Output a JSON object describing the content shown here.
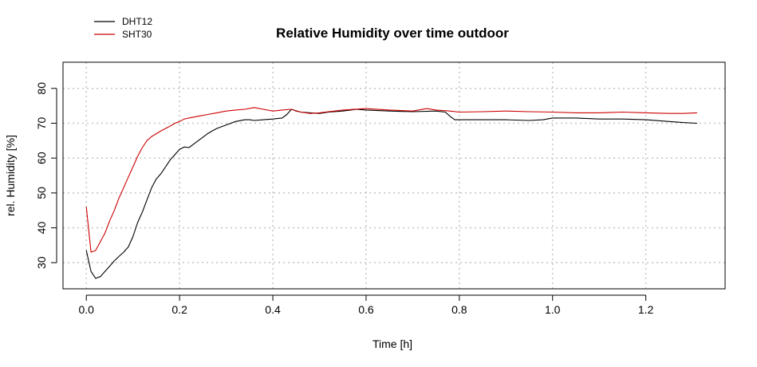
{
  "chart_data": {
    "type": "line",
    "title": "Relative Humidity over time outdoor",
    "xlabel": "Time [h]",
    "ylabel": "rel. Humidity [%]",
    "xlim": [
      -0.05,
      1.37
    ],
    "ylim": [
      22.5,
      87.5
    ],
    "xticks": [
      0.0,
      0.2,
      0.4,
      0.6,
      0.8,
      1.0,
      1.2
    ],
    "xtick_labels": [
      "0.0",
      "0.2",
      "0.4",
      "0.6",
      "0.8",
      "1.0",
      "1.2"
    ],
    "yticks": [
      30,
      40,
      50,
      60,
      70,
      80
    ],
    "ytick_labels": [
      "30",
      "40",
      "50",
      "60",
      "70",
      "80"
    ],
    "grid": true,
    "legend_position": "top-left",
    "series": [
      {
        "name": "DHT12",
        "color": "#000000",
        "x": [
          0.0,
          0.01,
          0.02,
          0.03,
          0.04,
          0.05,
          0.06,
          0.07,
          0.08,
          0.09,
          0.1,
          0.11,
          0.12,
          0.13,
          0.14,
          0.15,
          0.16,
          0.17,
          0.18,
          0.19,
          0.2,
          0.21,
          0.22,
          0.23,
          0.24,
          0.25,
          0.26,
          0.27,
          0.28,
          0.3,
          0.32,
          0.34,
          0.35,
          0.36,
          0.38,
          0.4,
          0.42,
          0.43,
          0.44,
          0.45,
          0.46,
          0.48,
          0.5,
          0.52,
          0.55,
          0.58,
          0.6,
          0.65,
          0.7,
          0.75,
          0.77,
          0.78,
          0.79,
          0.8,
          0.85,
          0.9,
          0.95,
          0.98,
          1.0,
          1.05,
          1.1,
          1.15,
          1.2,
          1.25,
          1.28,
          1.31
        ],
        "values": [
          33.5,
          27.5,
          25.5,
          26.0,
          27.5,
          29.0,
          30.5,
          31.8,
          33.0,
          34.5,
          37.5,
          41.5,
          44.5,
          48.0,
          51.5,
          54.0,
          55.5,
          57.5,
          59.5,
          61.0,
          62.5,
          63.2,
          63.0,
          64.0,
          65.0,
          66.0,
          67.0,
          67.8,
          68.5,
          69.5,
          70.5,
          71.0,
          71.0,
          70.8,
          71.0,
          71.2,
          71.5,
          72.5,
          74.0,
          73.5,
          73.2,
          73.0,
          72.8,
          73.2,
          73.5,
          74.0,
          73.8,
          73.5,
          73.3,
          73.5,
          73.2,
          72.0,
          71.0,
          71.0,
          71.0,
          71.0,
          70.8,
          71.0,
          71.5,
          71.5,
          71.2,
          71.2,
          71.0,
          70.5,
          70.2,
          70.0
        ]
      },
      {
        "name": "SHT30",
        "color": "#cc0000",
        "x": [
          0.0,
          0.01,
          0.02,
          0.03,
          0.04,
          0.05,
          0.06,
          0.07,
          0.08,
          0.09,
          0.1,
          0.11,
          0.12,
          0.13,
          0.14,
          0.15,
          0.16,
          0.17,
          0.18,
          0.19,
          0.2,
          0.21,
          0.22,
          0.24,
          0.26,
          0.28,
          0.3,
          0.32,
          0.34,
          0.36,
          0.38,
          0.4,
          0.42,
          0.44,
          0.46,
          0.48,
          0.5,
          0.55,
          0.6,
          0.65,
          0.7,
          0.73,
          0.75,
          0.78,
          0.8,
          0.85,
          0.9,
          0.95,
          1.0,
          1.05,
          1.1,
          1.15,
          1.2,
          1.25,
          1.28,
          1.31
        ],
        "values": [
          46.0,
          33.0,
          33.5,
          36.0,
          38.5,
          42.0,
          45.0,
          48.5,
          51.5,
          54.5,
          57.5,
          60.5,
          63.0,
          65.0,
          66.2,
          67.0,
          67.8,
          68.5,
          69.2,
          70.0,
          70.5,
          71.2,
          71.5,
          72.0,
          72.5,
          73.0,
          73.5,
          73.8,
          74.0,
          74.5,
          74.0,
          73.5,
          73.8,
          74.0,
          73.2,
          72.8,
          73.0,
          73.8,
          74.2,
          73.8,
          73.5,
          74.2,
          73.8,
          73.5,
          73.2,
          73.3,
          73.5,
          73.3,
          73.2,
          73.0,
          73.0,
          73.2,
          73.0,
          72.8,
          72.8,
          73.0
        ]
      }
    ]
  }
}
